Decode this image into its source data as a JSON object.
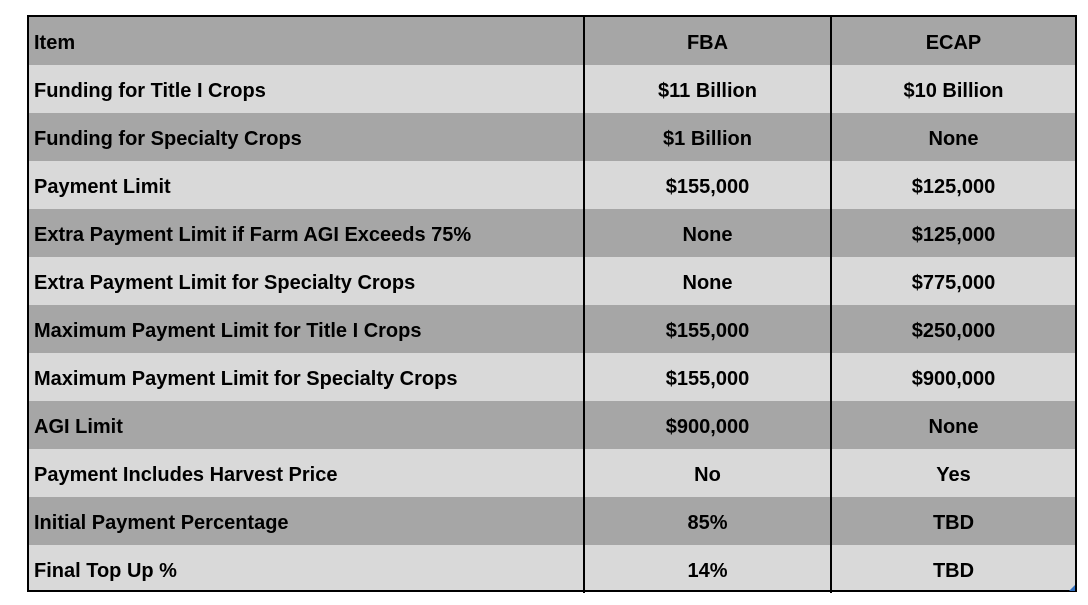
{
  "table": {
    "header": [
      "Item",
      "FBA",
      "ECAP"
    ],
    "rows": [
      [
        "Funding for Title I Crops",
        "$11 Billion",
        "$10 Billion"
      ],
      [
        "Funding for Specialty Crops",
        "$1 Billion",
        "None"
      ],
      [
        "Payment Limit",
        "$155,000",
        "$125,000"
      ],
      [
        "Extra Payment Limit if Farm AGI Exceeds 75%",
        "None",
        "$125,000"
      ],
      [
        "Extra Payment Limit for Specialty Crops",
        "None",
        "$775,000"
      ],
      [
        "Maximum Payment Limit for Title I Crops",
        "$155,000",
        "$250,000"
      ],
      [
        "Maximum Payment Limit for Specialty Crops",
        "$155,000",
        "$900,000"
      ],
      [
        "AGI Limit",
        "$900,000",
        "None"
      ],
      [
        "Payment Includes Harvest Price",
        "No",
        "Yes"
      ],
      [
        "Initial Payment Percentage",
        "85%",
        "TBD"
      ],
      [
        "Final Top Up %",
        "14%",
        "TBD"
      ]
    ]
  }
}
